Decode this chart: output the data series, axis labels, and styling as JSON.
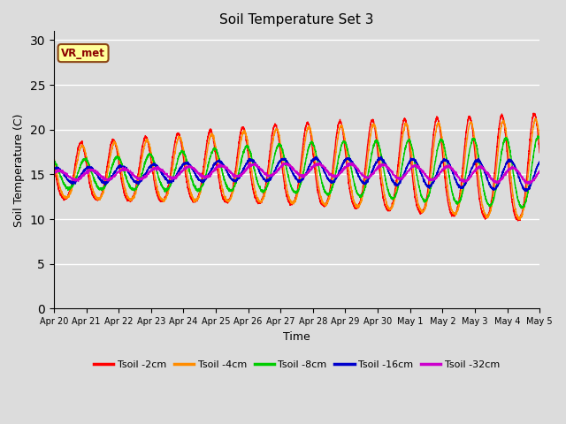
{
  "title": "Soil Temperature Set 3",
  "xlabel": "Time",
  "ylabel": "Soil Temperature (C)",
  "ylim": [
    0,
    31
  ],
  "xlim": [
    0,
    360
  ],
  "yticks": [
    0,
    5,
    10,
    15,
    20,
    25,
    30
  ],
  "xtick_labels": [
    "Apr 20",
    "Apr 21",
    "Apr 22",
    "Apr 23",
    "Apr 24",
    "Apr 25",
    "Apr 26",
    "Apr 27",
    "Apr 28",
    "Apr 29",
    "Apr 30",
    "May 1",
    "May 2",
    "May 3",
    "May 4",
    "May 5"
  ],
  "xtick_positions": [
    0,
    24,
    48,
    72,
    96,
    120,
    144,
    168,
    192,
    216,
    240,
    264,
    288,
    312,
    336,
    360
  ],
  "annotation_text": "VR_met",
  "annotation_color": "#8B0000",
  "annotation_bg": "#FFFF99",
  "fig_bg": "#DCDCDC",
  "plot_bg": "#DCDCDC",
  "grid_color": "#FFFFFF",
  "line_colors": [
    "#FF0000",
    "#FF8C00",
    "#00CC00",
    "#0000CC",
    "#CC00CC"
  ],
  "line_labels": [
    "Tsoil -2cm",
    "Tsoil -4cm",
    "Tsoil -8cm",
    "Tsoil -16cm",
    "Tsoil -32cm"
  ]
}
